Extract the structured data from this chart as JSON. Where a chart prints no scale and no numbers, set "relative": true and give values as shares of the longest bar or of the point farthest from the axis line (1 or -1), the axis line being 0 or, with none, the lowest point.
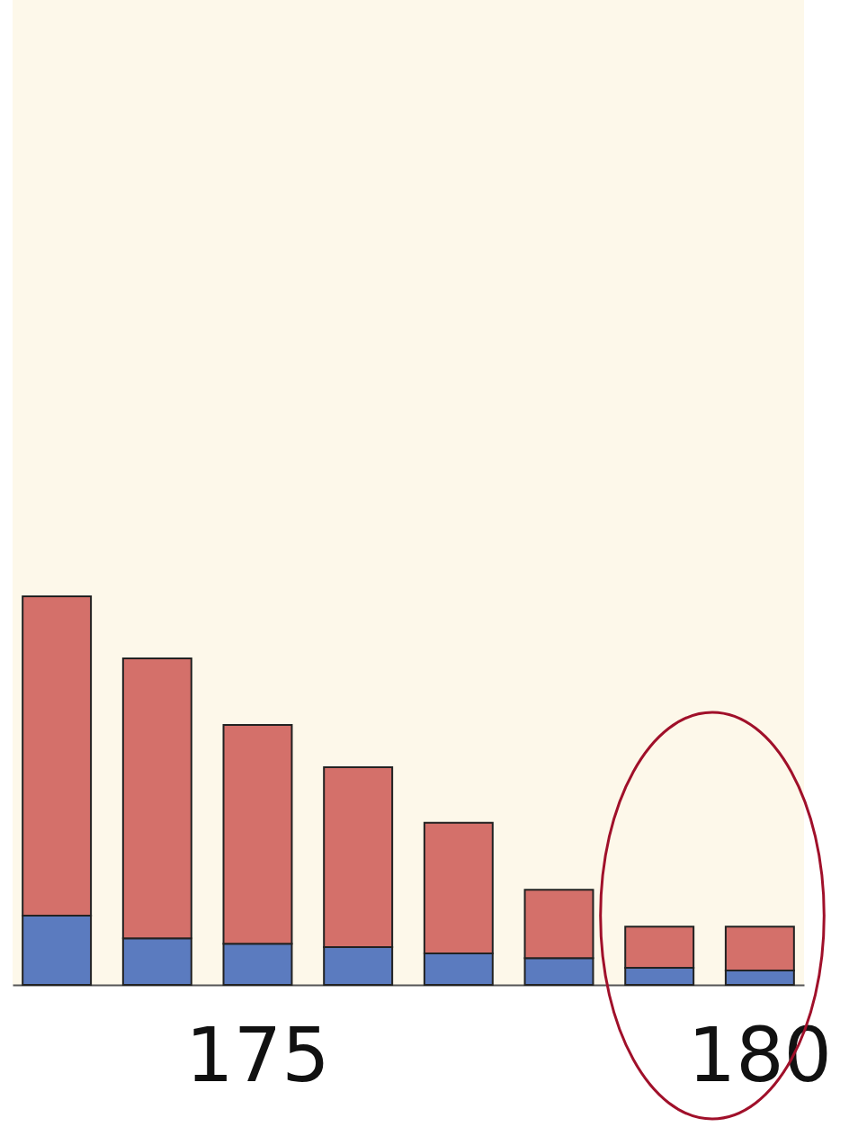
{
  "chart_data": {
    "type": "bar",
    "stacked": true,
    "relative": true,
    "categories": [
      null,
      null,
      "175",
      null,
      null,
      null,
      null,
      "180"
    ],
    "series": [
      {
        "color": "#5b7bbf",
        "values": [
          0.178,
          0.12,
          0.106,
          0.097,
          0.081,
          0.069,
          0.044,
          0.037
        ]
      },
      {
        "color": "#d4706a",
        "values": [
          0.822,
          0.72,
          0.563,
          0.463,
          0.336,
          0.176,
          0.106,
          0.113
        ]
      }
    ]
  }
}
